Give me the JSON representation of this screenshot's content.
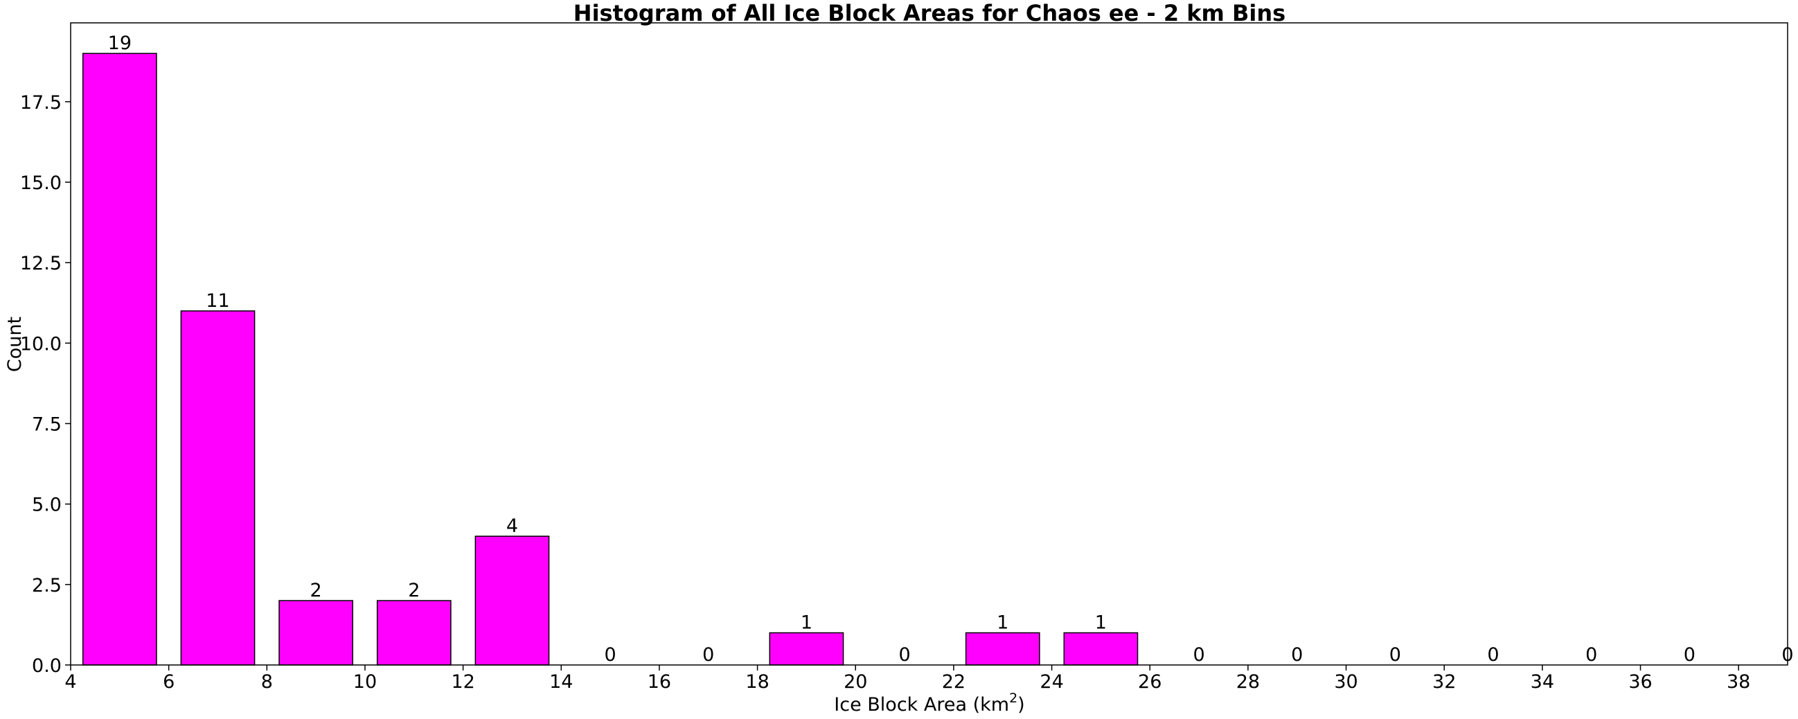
{
  "chart_data": {
    "type": "bar",
    "title": "Histogram of All Ice Block Areas for Chaos ee - 2 km Bins",
    "xlabel": "Ice Block Area (km",
    "xlabel_sup": "2",
    "xlabel_close": ")",
    "ylabel": "Count",
    "bar_color": "#ff00ff",
    "edge_color": "#000000",
    "bin_width": 1.5,
    "xlim": [
      4,
      39
    ],
    "ylim": [
      0,
      19.95
    ],
    "x_ticks": [
      4,
      6,
      8,
      10,
      12,
      14,
      16,
      18,
      20,
      22,
      24,
      26,
      28,
      30,
      32,
      34,
      36,
      38
    ],
    "y_ticks": [
      "0.0",
      "2.5",
      "5.0",
      "7.5",
      "10.0",
      "12.5",
      "15.0",
      "17.5"
    ],
    "y_tick_values": [
      0,
      2.5,
      5,
      7.5,
      10,
      12.5,
      15,
      17.5
    ],
    "x": [
      5,
      7,
      9,
      11,
      13,
      15,
      17,
      19,
      21,
      23,
      25,
      27,
      29,
      31,
      33,
      35,
      37,
      39
    ],
    "values": [
      19,
      11,
      2,
      2,
      4,
      0,
      0,
      1,
      0,
      1,
      1,
      0,
      0,
      0,
      0,
      0,
      0,
      0
    ],
    "grid": false
  }
}
